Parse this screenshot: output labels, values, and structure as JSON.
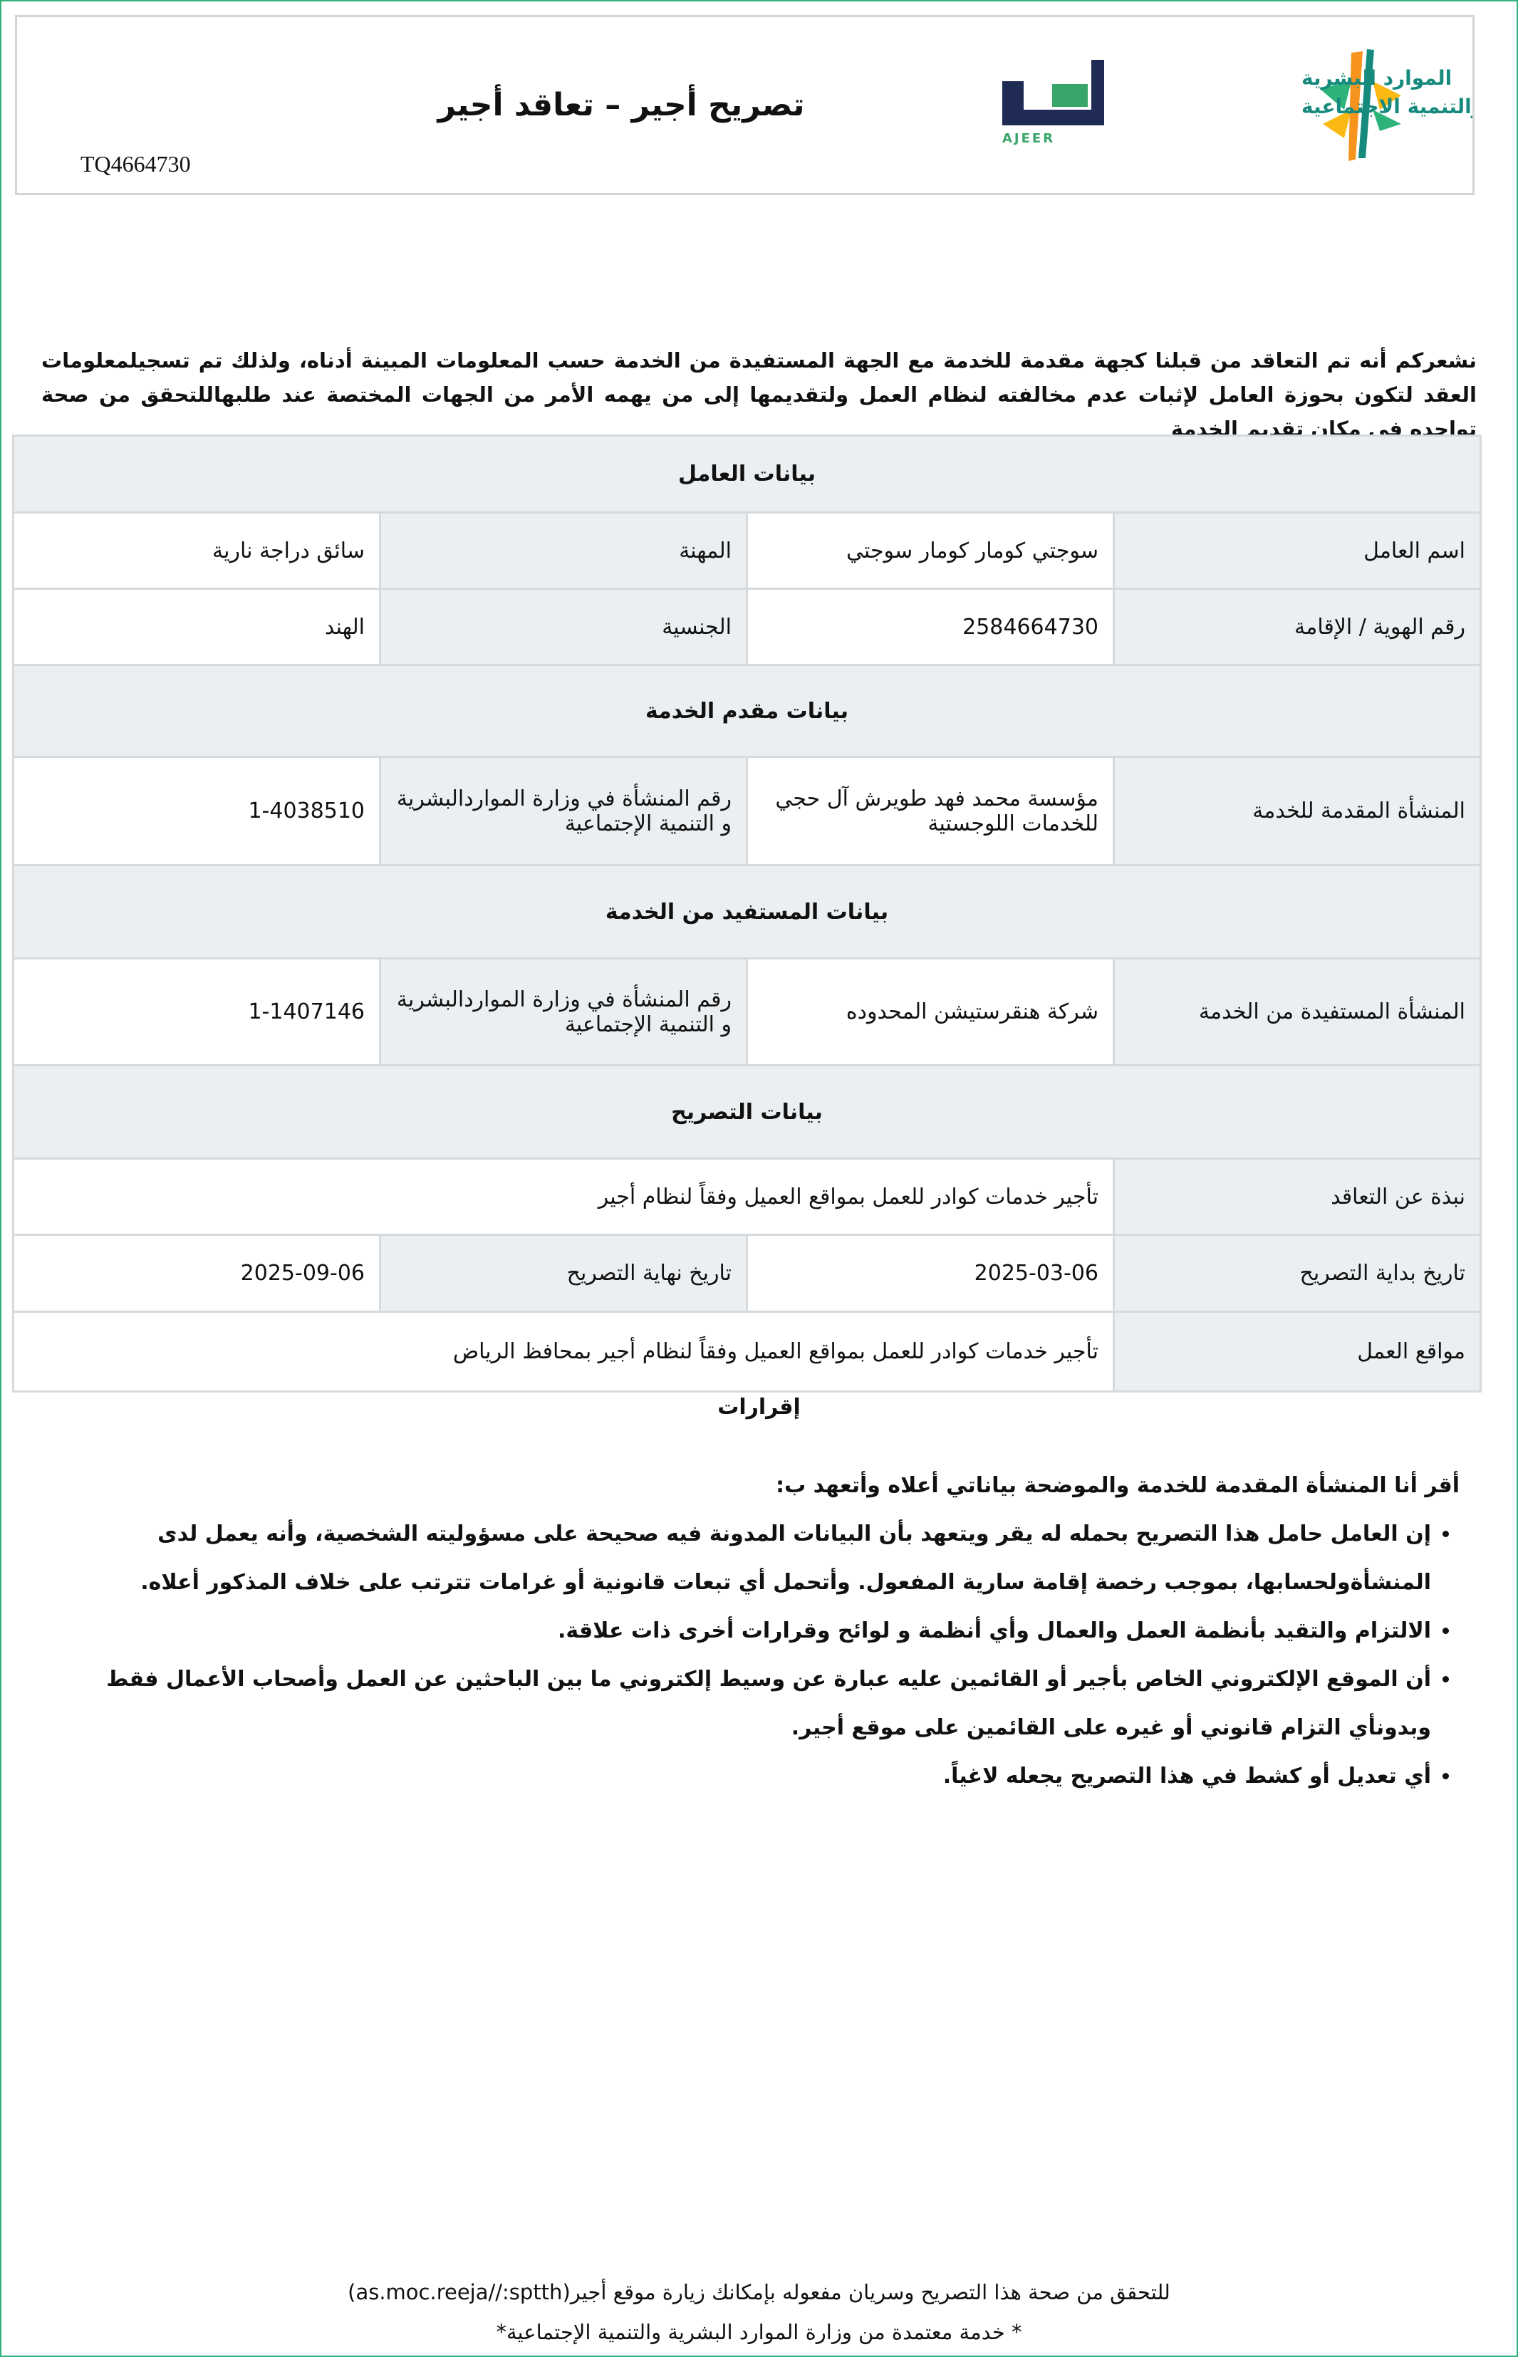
{
  "header": {
    "title": "تصريح أجير –  تعاقد أجير",
    "document_id": "TQ4664730",
    "ministry_logo_text": "الموارد البشرية والتنمية الاجتماعية",
    "ajeer_logo_text": "أجير",
    "ajeer_logo_latin": "AJEER"
  },
  "intro": "نشعركم أنه تم التعاقد من قبلنا كجهة مقدمة للخدمة مع الجهة المستفيدة من الخدمة حسب المعلومات المبينة أدناه، ولذلك تم تسجيلمعلومات العقد لتكون بحوزة العامل لإثبات عدم مخالفته لنظام العمل ولتقديمها إلى من يهمه الأمر من الجهات المختصة عند طلبهاللتحقق من صحة تواجده في مكان تقديم الخدمة",
  "worker": {
    "section": "بيانات العامل",
    "name_label": "اسم العامل",
    "name": "سوجتي كومار كومار سوجتي",
    "occupation_label": "المهنة",
    "occupation": "سائق دراجة نارية",
    "id_label": "رقم الهوية / الإقامة",
    "id": "2584664730",
    "nationality_label": "الجنسية",
    "nationality": "الهند"
  },
  "provider": {
    "section": "بيانات مقدم الخدمة",
    "entity_label": "المنشأة المقدمة للخدمة",
    "entity": "مؤسسة محمد فهد طويرش آل حجي للخدمات اللوجستية",
    "number_label": "رقم المنشأة في وزارة المواردالبشرية و التنمية الإجتماعية",
    "number": "1-4038510"
  },
  "beneficiary": {
    "section": "بيانات المستفيد من الخدمة",
    "entity_label": "المنشأة المستفيدة من الخدمة",
    "entity": "شركة هنقرستيشن المحدوده",
    "number_label": "رقم المنشأة في وزارة المواردالبشرية و التنمية الإجتماعية",
    "number": "1-1407146"
  },
  "permit": {
    "section": "بيانات التصريح",
    "about_label": "نبذة عن التعاقد",
    "about": "تأجير خدمات كوادر للعمل بمواقع العميل وفقاً لنظام أجير",
    "start_label": "تاريخ بداية التصريح",
    "start": "2025-03-06",
    "end_label": "تاريخ نهاية التصريح",
    "end": "2025-09-06",
    "locations_label": "مواقع العمل",
    "locations": "تأجير خدمات كوادر للعمل بمواقع العميل وفقاً لنظام أجير بمحافظ الرياض"
  },
  "declarations": {
    "title": "إقرارات",
    "lead": "أقر أنا المنشأة المقدمة للخدمة والموضحة بياناتي أعلاه وأتعهد ب:",
    "items": [
      "إن العامل حامل هذا التصريح بحمله له يقر ويتعهد بأن البيانات المدونة فيه صحيحة على مسؤوليته الشخصية، وأنه يعمل لدى المنشأةولحسابها، بموجب رخصة إقامة سارية المفعول. وأتحمل أي تبعات قانونية أو غرامات تترتب على خلاف المذكور أعلاه.",
      "الالتزام والتقيد بأنظمة العمل والعمال وأي أنظمة و لوائح وقرارات أخرى ذات علاقة.",
      "أن الموقع الإلكتروني الخاص بأجير أو القائمين عليه عبارة عن وسيط إلكتروني ما بين الباحثين عن العمل وأصحاب الأعمال فقط وبدونأي التزام قانوني أو غيره على القائمين على موقع أجير.",
      "أي تعديل أو كشط في هذا التصريح يجعله لاغياً."
    ]
  },
  "footer": {
    "verify": "للتحقق من صحة هذا التصريح وسريان مفعوله بإمكانك زيارة موقع أجير(as.moc.reeja//:sptth)",
    "note": "* خدمة معتمدة من وزارة الموارد البشرية والتنمية الإجتماعية*"
  },
  "colors": {
    "border": "#2db37a",
    "section_bg": "#eceff1",
    "ajeer_navy": "#1f2a55",
    "ajeer_green": "#3aa56a",
    "ministry_teal": "#178a7e",
    "ministry_orange": "#f7941d"
  }
}
